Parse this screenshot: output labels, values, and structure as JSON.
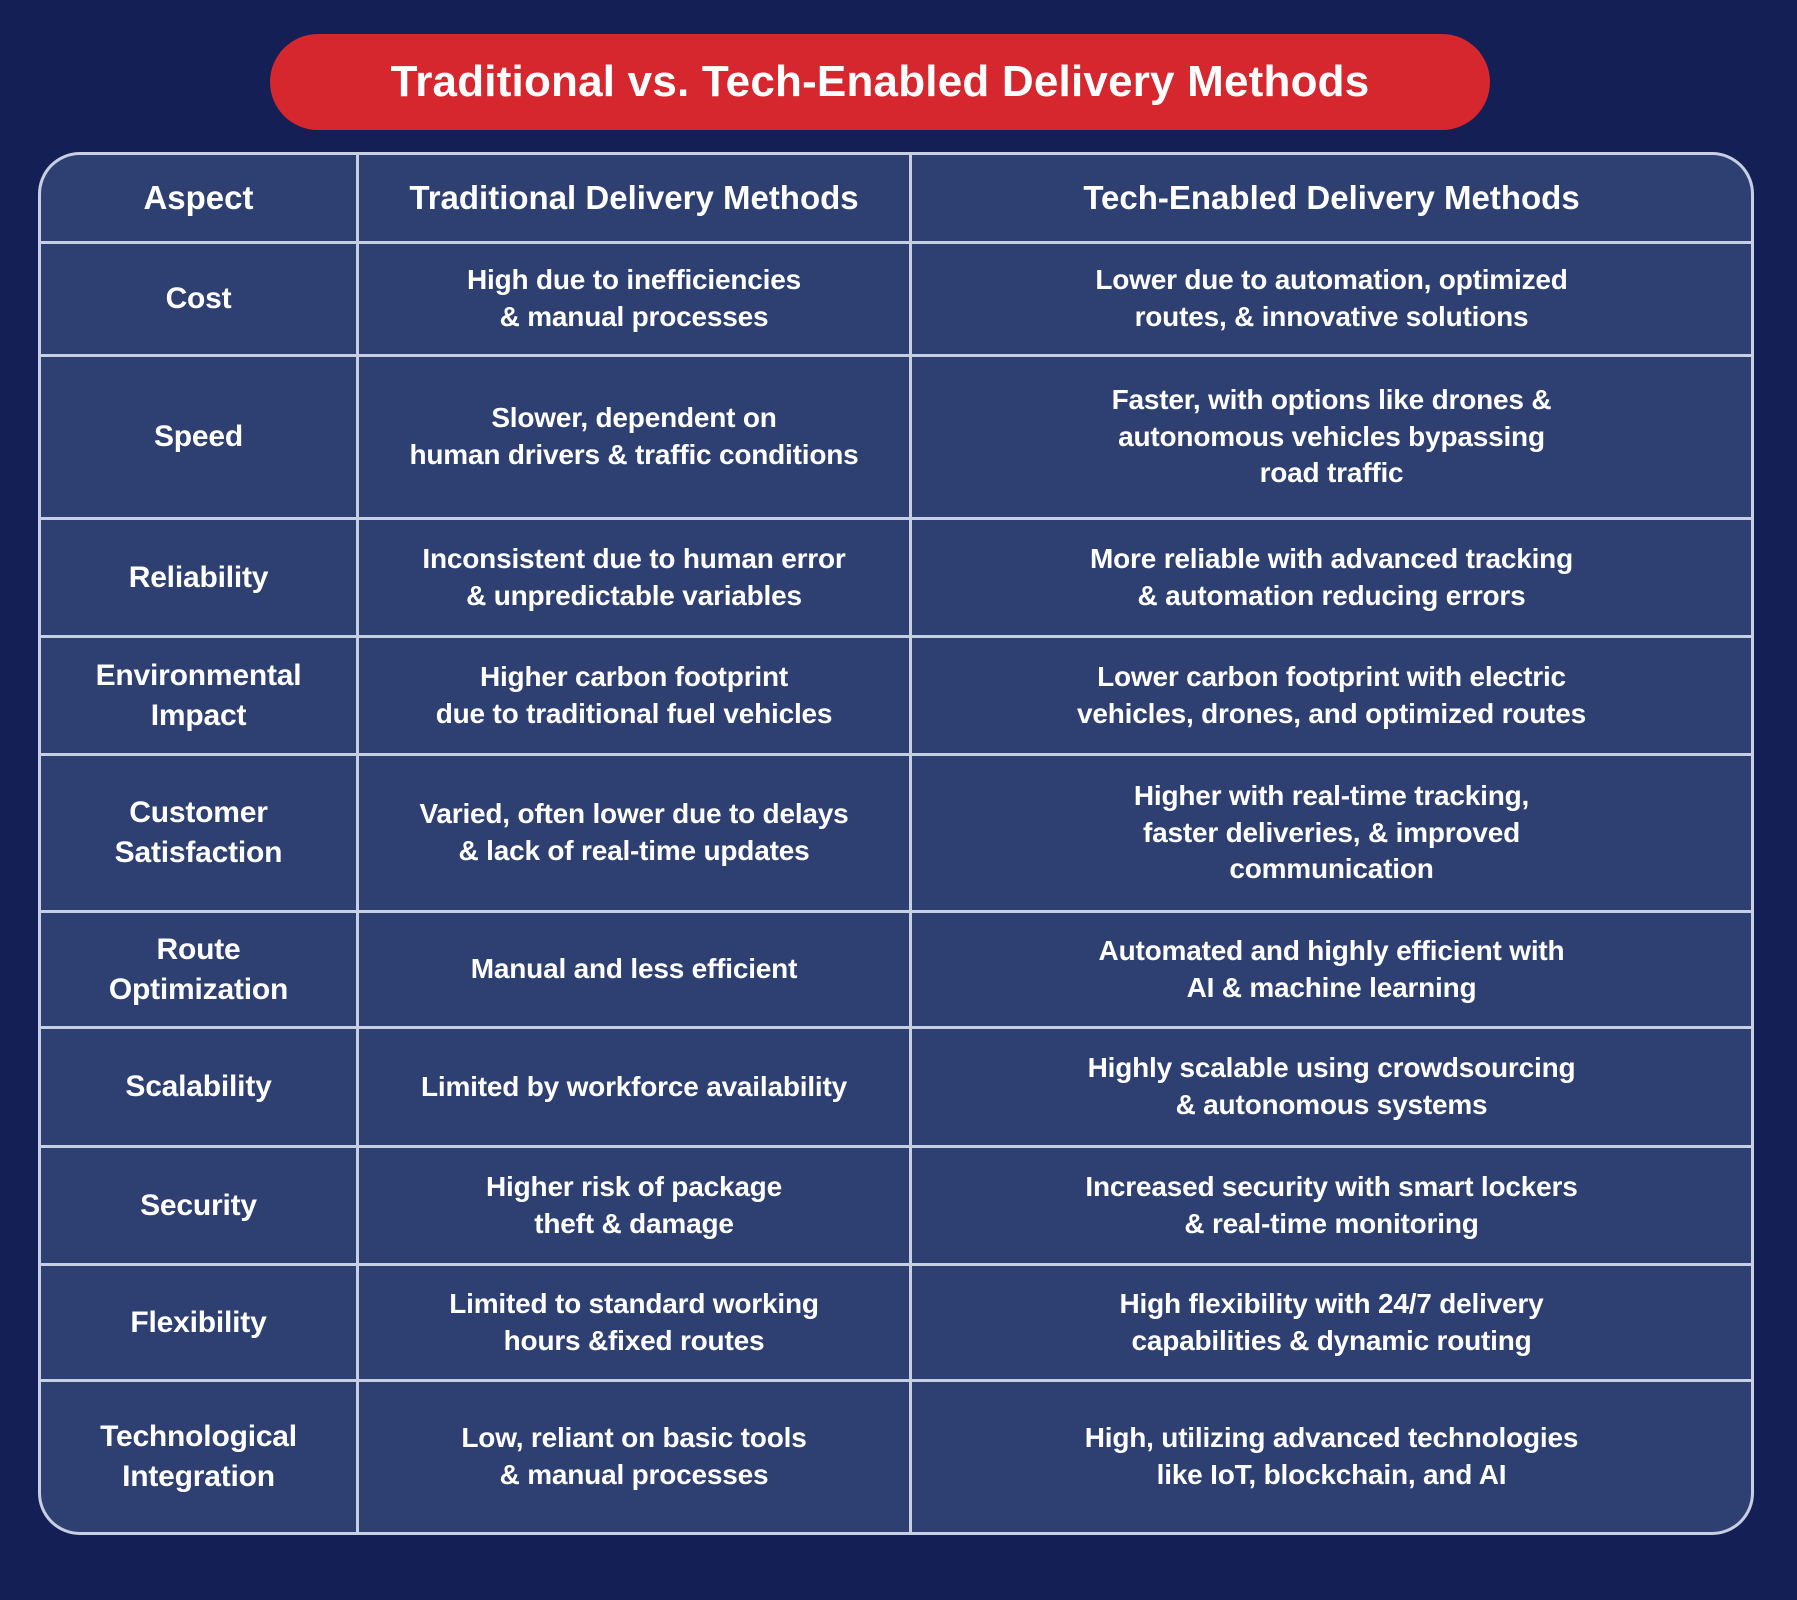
{
  "title": "Traditional vs. Tech-Enabled Delivery Methods",
  "colors": {
    "background_navy": "#141f55",
    "cell_navy": "#2e3f72",
    "grid_line": "#c7cfe2",
    "accent_red": "#d6262e",
    "text_white": "#ffffff"
  },
  "table": {
    "headers": [
      "Aspect",
      "Traditional Delivery Methods",
      "Tech-Enabled Delivery Methods"
    ],
    "rows": [
      {
        "aspect": "Cost",
        "traditional": "High due to inefficiencies\n& manual processes",
        "tech": "Lower due to automation, optimized\nroutes, & innovative solutions"
      },
      {
        "aspect": "Speed",
        "traditional": "Slower, dependent on\nhuman drivers & traffic conditions",
        "tech": "Faster, with options like drones &\nautonomous vehicles bypassing\nroad traffic"
      },
      {
        "aspect": "Reliability",
        "traditional": "Inconsistent due to human error\n& unpredictable variables",
        "tech": "More reliable with advanced tracking\n& automation reducing errors"
      },
      {
        "aspect": "Environmental\nImpact",
        "traditional": "Higher carbon footprint\ndue to traditional fuel vehicles",
        "tech": "Lower carbon footprint with electric\nvehicles, drones, and optimized routes"
      },
      {
        "aspect": "Customer\nSatisfaction",
        "traditional": "Varied, often lower due to delays\n& lack of real-time updates",
        "tech": "Higher with real-time tracking,\nfaster deliveries, & improved\ncommunication"
      },
      {
        "aspect": "Route\nOptimization",
        "traditional": "Manual and less efficient",
        "tech": "Automated and highly efficient with\nAI & machine learning"
      },
      {
        "aspect": "Scalability",
        "traditional": "Limited by workforce availability",
        "tech": "Highly scalable using crowdsourcing\n& autonomous systems"
      },
      {
        "aspect": "Security",
        "traditional": "Higher risk of package\ntheft & damage",
        "tech": "Increased security with smart lockers\n& real-time monitoring"
      },
      {
        "aspect": "Flexibility",
        "traditional": "Limited to standard working\nhours &fixed routes",
        "tech": "High flexibility with 24/7 delivery\ncapabilities & dynamic routing"
      },
      {
        "aspect": "Technological\nIntegration",
        "traditional": "Low, reliant on basic tools\n& manual processes",
        "tech": "High, utilizing advanced technologies\nlike IoT, blockchain, and AI"
      }
    ]
  }
}
